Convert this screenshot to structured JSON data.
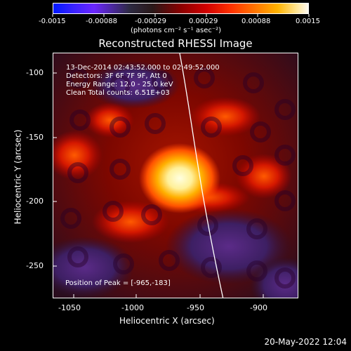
{
  "colorbar": {
    "tick_labels": [
      "-0.0015",
      "-0.00088",
      "-0.00029",
      "0.00029",
      "0.00088",
      "0.0015"
    ],
    "units_label": "(photons cm⁻² s⁻¹ asec⁻²)"
  },
  "title": "Reconstructed RHESSI Image",
  "xlabel": "Heliocentric X (arcsec)",
  "ylabel": "Heliocentric Y (arcsec)",
  "xticks": [
    "-1050",
    "-1000",
    "-950",
    "-900"
  ],
  "yticks": [
    "-100",
    "-150",
    "-200",
    "-250"
  ],
  "annotations": {
    "line1": "13-Dec-2014 02:43:52.000 to 02:49:52.000",
    "line2": "Detectors: 3F 6F 7F 9F, Att 0",
    "line3": "Energy Range: 12.0 - 25.0 keV",
    "line4": "Clean     Total counts: 6.51E+03"
  },
  "peak_text": "Position of Peak = [-965,-183]",
  "footer_date": "20-May-2022 12:04"
}
